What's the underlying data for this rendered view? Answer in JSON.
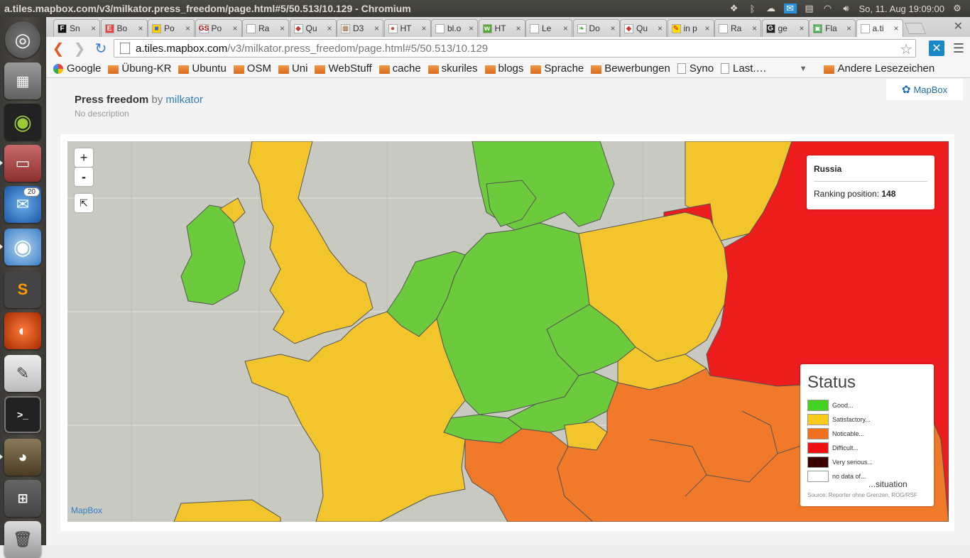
{
  "topbar": {
    "window_title": "a.tiles.mapbox.com/v3/milkator.press_freedom/page.html#5/50.513/10.129 - Chromium",
    "clock": "So, 11. Aug 19:09:00"
  },
  "launcher": {
    "thunderbird_badge": "20"
  },
  "tabs": [
    {
      "label": "Sn",
      "fav": "F",
      "favbg": "#111",
      "favcolor": "#fff"
    },
    {
      "label": "Bo",
      "fav": "E",
      "favbg": "#e44",
      "favcolor": "#fff"
    },
    {
      "label": "Po",
      "fav": "■",
      "favbg": "#fc0",
      "favcolor": "#36c"
    },
    {
      "label": "Po",
      "fav": "GS",
      "favbg": "#fff",
      "favcolor": "#c00"
    },
    {
      "label": "Ra",
      "fav": "",
      "favbg": "#fff",
      "favcolor": "#333"
    },
    {
      "label": "Qu",
      "fav": "◆",
      "favbg": "#fff",
      "favcolor": "#c33"
    },
    {
      "label": "D3",
      "fav": "▦",
      "favbg": "#fff",
      "favcolor": "#963"
    },
    {
      "label": "HT",
      "fav": "●",
      "favbg": "#fff",
      "favcolor": "#c44"
    },
    {
      "label": "bl.o",
      "fav": "",
      "favbg": "#fff",
      "favcolor": "#333"
    },
    {
      "label": "HT",
      "fav": "w",
      "favbg": "#5a3",
      "favcolor": "#fff"
    },
    {
      "label": "Le",
      "fav": "",
      "favbg": "#fff",
      "favcolor": "#333"
    },
    {
      "label": "Do",
      "fav": "❧",
      "favbg": "#fff",
      "favcolor": "#4a3"
    },
    {
      "label": "Qu",
      "fav": "◆",
      "favbg": "#fff",
      "favcolor": "#c33"
    },
    {
      "label": "in p",
      "fav": "✎",
      "favbg": "#fd0",
      "favcolor": "#c00"
    },
    {
      "label": "Ra",
      "fav": "",
      "favbg": "#fff",
      "favcolor": "#333"
    },
    {
      "label": "ge",
      "fav": "G",
      "favbg": "#222",
      "favcolor": "#fff"
    },
    {
      "label": "Fla",
      "fav": "▣",
      "favbg": "#3a3",
      "favcolor": "#fff"
    },
    {
      "label": "a.ti",
      "fav": "",
      "favbg": "#fff",
      "favcolor": "#333"
    }
  ],
  "address": {
    "host": "a.tiles.mapbox.com",
    "path": "/v3/milkator.press_freedom/page.html#5/50.513/10.129"
  },
  "bookmarks": [
    {
      "label": "Google",
      "type": "google"
    },
    {
      "label": "Übung-KR",
      "type": "folder"
    },
    {
      "label": "Ubuntu",
      "type": "folder"
    },
    {
      "label": "OSM",
      "type": "folder"
    },
    {
      "label": "Uni",
      "type": "folder"
    },
    {
      "label": "WebStuff",
      "type": "folder"
    },
    {
      "label": "cache",
      "type": "folder"
    },
    {
      "label": "skuriles",
      "type": "folder"
    },
    {
      "label": "blogs",
      "type": "folder"
    },
    {
      "label": "Sprache",
      "type": "folder"
    },
    {
      "label": "Bewerbungen",
      "type": "folder"
    },
    {
      "label": "Syno",
      "type": "page"
    },
    {
      "label": "Last.…",
      "type": "page"
    }
  ],
  "bookmarks_other": "Andere Lesezeichen",
  "page": {
    "title": "Press freedom",
    "by": "by",
    "author": "milkator",
    "description": "No description",
    "badge": "MapBox"
  },
  "map": {
    "zoom_in": "+",
    "zoom_out": "-",
    "attribution": "MapBox",
    "tooltip": {
      "country": "Russia",
      "label": "Ranking position:",
      "value": "148"
    },
    "legend": {
      "title": "Status",
      "items": [
        {
          "label": "Good...",
          "color": "#44d120"
        },
        {
          "label": "Satisfactory...",
          "color": "#f7cc1c"
        },
        {
          "label": "Noticable...",
          "color": "#f07020"
        },
        {
          "label": "Difficult...",
          "color": "#ee1010"
        },
        {
          "label": "Very serious...",
          "color": "#3a0000"
        },
        {
          "label": "no data of...",
          "color": "#ffffff"
        }
      ],
      "situation": "...situation",
      "source": "Source: Reporter ohne Grenzen, ROG/RSF"
    }
  }
}
